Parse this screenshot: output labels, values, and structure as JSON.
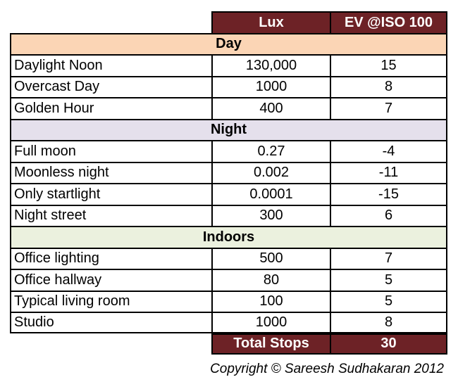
{
  "header": {
    "lux_label": "Lux",
    "ev_label": "EV @ISO 100"
  },
  "sections": [
    {
      "title": "Day",
      "rows": [
        {
          "name": "Daylight Noon",
          "lux": "130,000",
          "ev": "15"
        },
        {
          "name": "Overcast Day",
          "lux": "1000",
          "ev": "8"
        },
        {
          "name": "Golden Hour",
          "lux": "400",
          "ev": "7"
        }
      ]
    },
    {
      "title": "Night",
      "rows": [
        {
          "name": "Full moon",
          "lux": "0.27",
          "ev": "-4"
        },
        {
          "name": "Moonless night",
          "lux": "0.002",
          "ev": "-11"
        },
        {
          "name": "Only startlight",
          "lux": "0.0001",
          "ev": "-15"
        },
        {
          "name": "Night street",
          "lux": "300",
          "ev": "6"
        }
      ]
    },
    {
      "title": "Indoors",
      "rows": [
        {
          "name": "Office lighting",
          "lux": "500",
          "ev": "7"
        },
        {
          "name": "Office hallway",
          "lux": "80",
          "ev": "5"
        },
        {
          "name": "Typical living room",
          "lux": "100",
          "ev": "5"
        },
        {
          "name": "Studio",
          "lux": "1000",
          "ev": "8"
        }
      ]
    }
  ],
  "total": {
    "label": "Total Stops",
    "value": "30"
  },
  "copyright": "Copyright © Sareesh Sudhakaran 2012",
  "colors": {
    "header_bg": "#6d2226",
    "day_bg": "#fbd5b5",
    "night_bg": "#e5e0ec",
    "indoors_bg": "#ebf1de"
  }
}
